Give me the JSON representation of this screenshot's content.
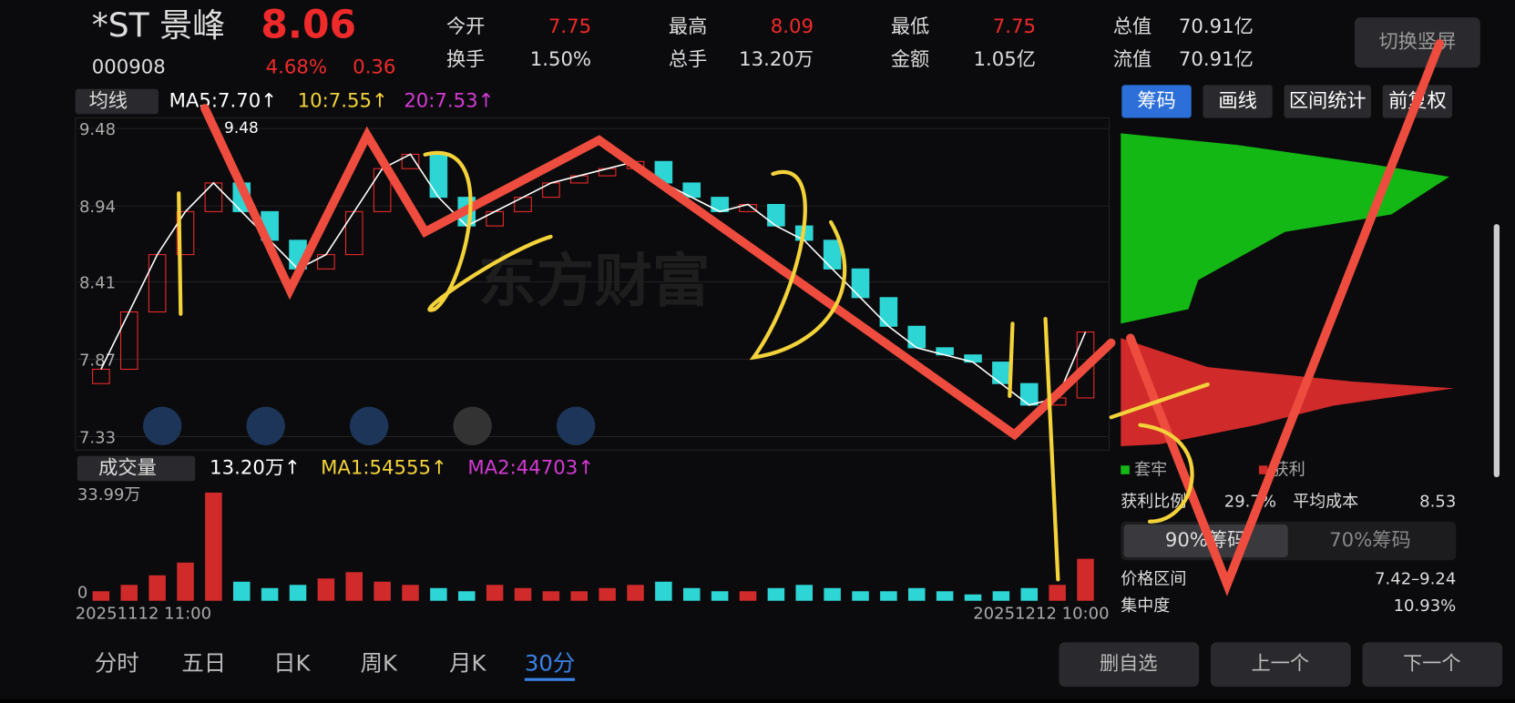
{
  "header": {
    "name": "*ST 景峰",
    "price": "8.06",
    "code": "000908",
    "change_pct": "4.68%",
    "change": "0.36"
  },
  "quotes": [
    {
      "label": "今开",
      "value": "7.75"
    },
    {
      "label": "最高",
      "value": "8.09"
    },
    {
      "label": "最低",
      "value": "7.75"
    },
    {
      "label": "总值",
      "value": "70.91亿"
    },
    {
      "label": "换手",
      "value": "1.50%"
    },
    {
      "label": "总手",
      "value": "13.20万"
    },
    {
      "label": "金额",
      "value": "1.05亿"
    },
    {
      "label": "流值",
      "value": "70.91亿"
    }
  ],
  "rotate_button": "切换竖屏",
  "ma_bar": {
    "selector": "均线",
    "ma5": "MA5:7.70↑",
    "ma10": "10:7.55↑",
    "ma20": "20:7.53↑"
  },
  "right_tabs": [
    "筹码",
    "画线",
    "区间统计",
    "前复权"
  ],
  "chart": {
    "yticks": [
      {
        "value": 9.48,
        "label": "9.48"
      },
      {
        "value": 8.94,
        "label": "8.94"
      },
      {
        "value": 8.41,
        "label": "8.41"
      },
      {
        "value": 7.87,
        "label": "7.87"
      },
      {
        "value": 7.33,
        "label": "7.33"
      }
    ],
    "ylim": [
      7.33,
      9.48
    ],
    "max_label": "9.48",
    "watermark": "东方财富",
    "opens": [
      7.7,
      7.8,
      8.2,
      8.6,
      8.9,
      9.1,
      8.9,
      8.7,
      8.5,
      8.6,
      8.9,
      9.2,
      9.3,
      9.0,
      8.8,
      8.9,
      9.0,
      9.1,
      9.15,
      9.2,
      9.25,
      9.1,
      9.0,
      8.9,
      8.95,
      8.8,
      8.7,
      8.5,
      8.3,
      8.1,
      7.95,
      7.9,
      7.85,
      7.7,
      7.55,
      7.6
    ],
    "closes": [
      7.8,
      8.2,
      8.6,
      8.9,
      9.1,
      8.9,
      8.7,
      8.5,
      8.6,
      8.9,
      9.2,
      9.3,
      9.0,
      8.8,
      8.9,
      9.0,
      9.1,
      9.15,
      9.2,
      9.25,
      9.1,
      9.0,
      8.9,
      8.95,
      8.8,
      8.7,
      8.5,
      8.3,
      8.1,
      7.95,
      7.9,
      7.85,
      7.7,
      7.55,
      7.6,
      8.06
    ]
  },
  "volume": {
    "selector": "成交量",
    "total": "13.20万↑",
    "ma1": "MA1:54555↑",
    "ma2": "MA2:44703↑",
    "ymax_label": "33.99万",
    "ymin_label": "0",
    "ylim": [
      0,
      33.99
    ],
    "values": [
      3,
      5,
      8,
      12,
      34,
      6,
      4,
      5,
      7,
      9,
      6,
      5,
      4,
      3,
      5,
      4,
      3,
      3,
      4,
      5,
      6,
      4,
      3,
      3,
      4,
      5,
      4,
      3,
      3,
      4,
      3,
      2,
      3,
      4,
      5,
      13.2
    ],
    "start_date": "20251112 11:00",
    "end_date": "20251212 10:00"
  },
  "chips": {
    "legend_loss": "套牢",
    "legend_profit": "获利",
    "profit_ratio_label": "获利比例",
    "profit_ratio": "29.7%",
    "avg_cost_label": "平均成本",
    "avg_cost": "8.53",
    "tab90": "90%筹码",
    "tab70": "70%筹码",
    "range_label": "价格区间",
    "range": "7.42–9.24",
    "conc_label": "集中度",
    "conc": "10.93%"
  },
  "bottom_tabs": [
    "分时",
    "五日",
    "日K",
    "周K",
    "月K",
    "30分"
  ],
  "bottom_buttons": [
    "删自选",
    "上一个",
    "下一个"
  ]
}
